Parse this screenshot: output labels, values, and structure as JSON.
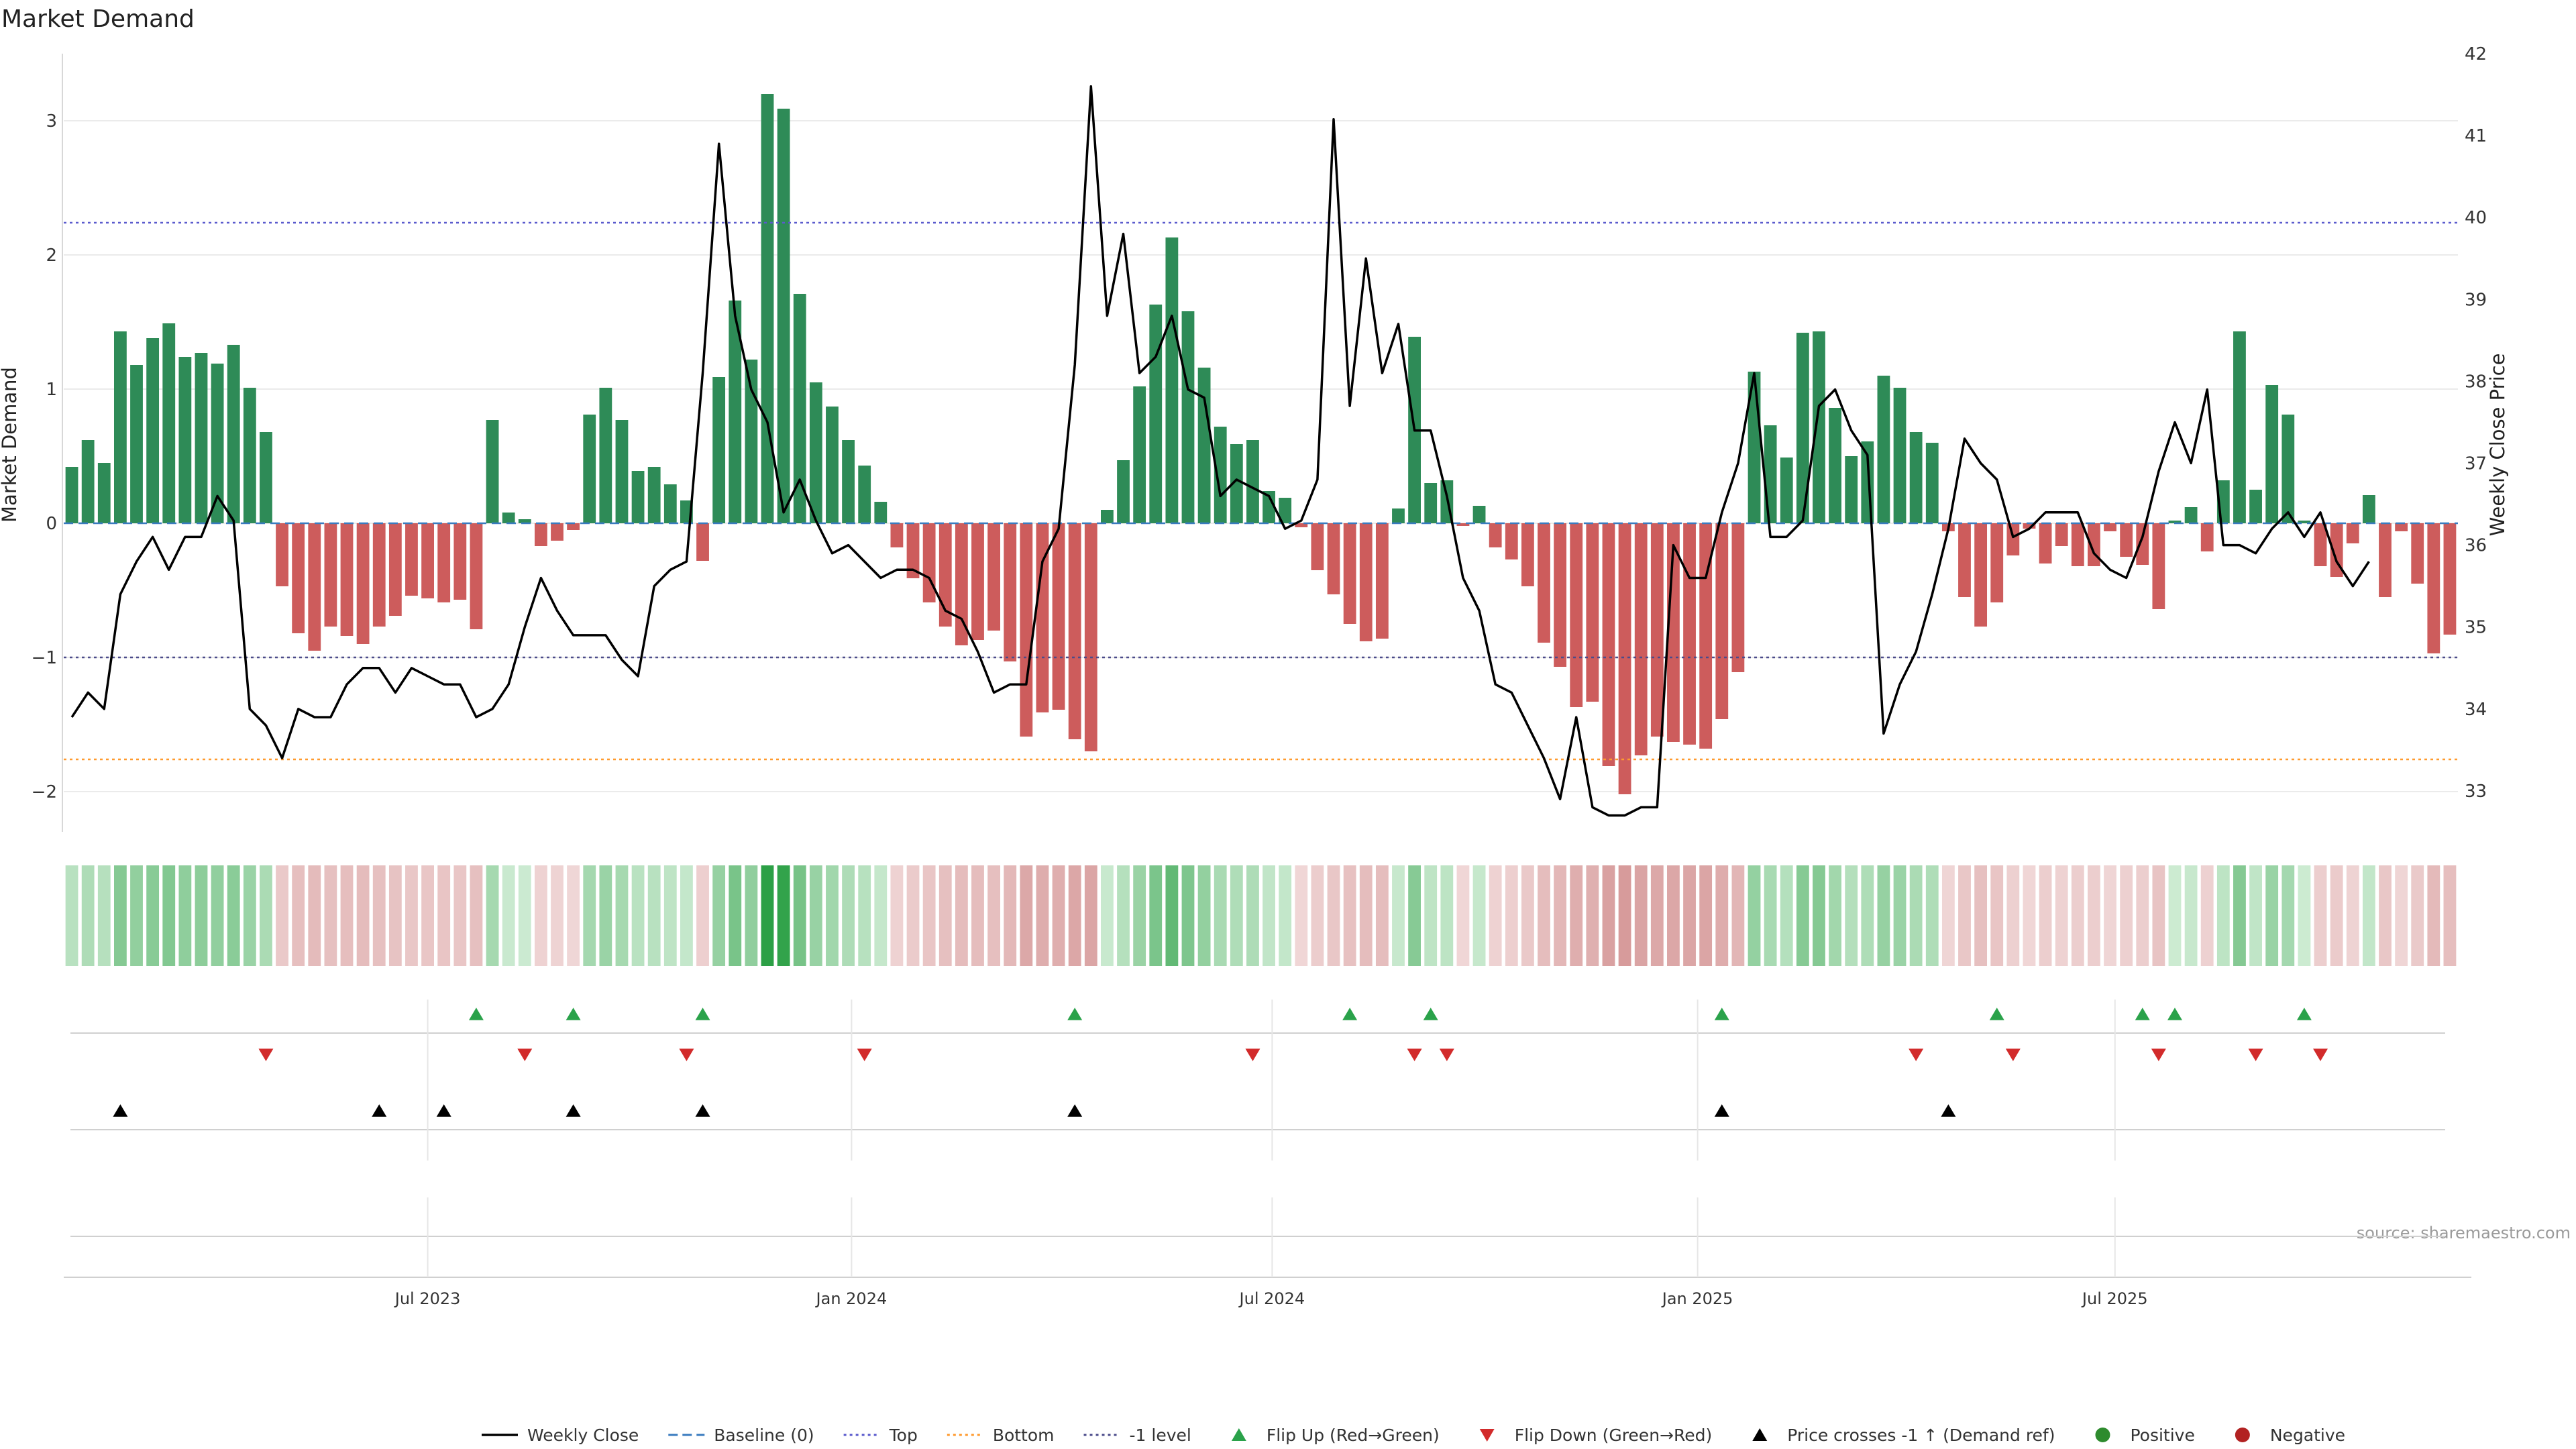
{
  "chart_data": {
    "type": "bar",
    "title": "Market Demand",
    "ylabel_left": "Market Demand",
    "ylabel_right": "Weekly Close Price",
    "source": "source: sharemaestro.com",
    "left_axis": {
      "ylim": [
        -2.3,
        3.5
      ],
      "ticks": [
        -2,
        -1,
        0,
        1,
        2,
        3
      ]
    },
    "right_axis": {
      "ylim": [
        32.5,
        42.0
      ],
      "ticks": [
        33,
        34,
        35,
        36,
        37,
        38,
        39,
        40,
        41,
        42
      ]
    },
    "x_axis": {
      "start_date": "2023-01-02",
      "interval": "weekly",
      "tick_labels": [
        {
          "label": "Jul 2023",
          "week": 22
        },
        {
          "label": "Jan 2024",
          "week": 48.2
        },
        {
          "label": "Jul 2024",
          "week": 74.2
        },
        {
          "label": "Jan 2025",
          "week": 100.5
        },
        {
          "label": "Jul 2025",
          "week": 126.3
        }
      ]
    },
    "reference_lines": [
      {
        "name": "Top",
        "value": 2.24,
        "color": "#5a5acd"
      },
      {
        "name": "Bottom",
        "value": -1.76,
        "color": "#ff9a2e"
      },
      {
        "name": "-1 level",
        "value": -1.0,
        "color": "#4b4b8a"
      }
    ],
    "series": [
      {
        "name": "Market Demand",
        "values": [
          0.42,
          0.62,
          0.45,
          1.43,
          1.18,
          1.38,
          1.49,
          1.24,
          1.27,
          1.19,
          1.33,
          1.01,
          0.68,
          -0.47,
          -0.82,
          -0.95,
          -0.77,
          -0.84,
          -0.9,
          -0.77,
          -0.69,
          -0.54,
          -0.56,
          -0.59,
          -0.57,
          -0.79,
          0.77,
          0.08,
          0.03,
          -0.17,
          -0.13,
          -0.05,
          0.81,
          1.01,
          0.77,
          0.39,
          0.42,
          0.29,
          0.17,
          -0.28,
          1.09,
          1.66,
          1.22,
          3.2,
          3.09,
          1.71,
          1.05,
          0.87,
          0.62,
          0.43,
          0.16,
          -0.18,
          -0.41,
          -0.59,
          -0.77,
          -0.91,
          -0.87,
          -0.8,
          -1.03,
          -1.59,
          -1.41,
          -1.39,
          -1.61,
          -1.7,
          0.1,
          0.47,
          1.02,
          1.63,
          2.13,
          1.58,
          1.16,
          0.72,
          0.59,
          0.62,
          0.24,
          0.19,
          -0.03,
          -0.35,
          -0.53,
          -0.75,
          -0.88,
          -0.86,
          0.11,
          1.39,
          0.3,
          0.32,
          -0.02,
          0.13,
          -0.18,
          -0.27,
          -0.47,
          -0.89,
          -1.07,
          -1.37,
          -1.33,
          -1.81,
          -2.02,
          -1.73,
          -1.59,
          -1.63,
          -1.65,
          -1.68,
          -1.46,
          -1.11,
          1.13,
          0.73,
          0.49,
          1.42,
          1.43,
          0.86,
          0.5,
          0.61,
          1.1,
          1.01,
          0.68,
          0.6,
          -0.06,
          -0.55,
          -0.77,
          -0.59,
          -0.24,
          -0.04,
          -0.3,
          -0.17,
          -0.32,
          -0.32,
          -0.06,
          -0.25,
          -0.31,
          -0.64,
          0.02,
          0.12,
          -0.21,
          0.32,
          1.43,
          0.25,
          1.03,
          0.81,
          0.02,
          -0.32,
          -0.4,
          -0.15,
          0.21,
          -0.55,
          -0.06,
          -0.45,
          -0.97,
          -0.83
        ]
      },
      {
        "name": "Weekly Close",
        "values": [
          33.9,
          34.2,
          34,
          35.4,
          35.8,
          36.1,
          35.7,
          36.1,
          36.1,
          36.6,
          36.3,
          34.0,
          33.8,
          33.4,
          34.0,
          33.9,
          33.9,
          34.3,
          34.5,
          34.5,
          34.2,
          34.5,
          34.4,
          34.3,
          34.3,
          33.9,
          34.0,
          34.3,
          35.0,
          35.6,
          35.2,
          34.9,
          34.9,
          34.9,
          34.6,
          34.4,
          35.5,
          35.7,
          35.8,
          38.1,
          40.9,
          38.8,
          37.9,
          37.5,
          36.4,
          36.8,
          36.3,
          35.9,
          36.0,
          35.8,
          35.6,
          35.7,
          35.7,
          35.6,
          35.2,
          35.1,
          34.7,
          34.2,
          34.3,
          34.3,
          35.8,
          36.2,
          38.2,
          41.6,
          38.8,
          39.8,
          38.1,
          38.3,
          38.8,
          37.9,
          37.8,
          36.6,
          36.8,
          36.7,
          36.6,
          36.2,
          36.3,
          36.8,
          41.2,
          37.7,
          39.5,
          38.1,
          38.7,
          37.4,
          37.4,
          36.6,
          35.6,
          35.2,
          34.3,
          34.2,
          33.8,
          33.4,
          32.9,
          33.9,
          32.8,
          32.7,
          32.7,
          32.8,
          32.8,
          36.0,
          35.6,
          35.6,
          36.4,
          37.0,
          38.1,
          36.1,
          36.1,
          36.3,
          37.7,
          37.9,
          37.4,
          37.1,
          33.7,
          34.3,
          34.7,
          35.4,
          36.2,
          37.3,
          37.0,
          36.8,
          36.1,
          36.2,
          36.4,
          36.4,
          36.4,
          35.9,
          35.7,
          35.6,
          36.1,
          36.9,
          37.5,
          37.0,
          37.9,
          36.0,
          36.0,
          35.9,
          36.2,
          36.4,
          36.1,
          36.4,
          35.8,
          35.5,
          35.8
        ]
      }
    ],
    "signals": {
      "flip_up_weeks": [
        25,
        31,
        39,
        62,
        79,
        84,
        102,
        119,
        128,
        130,
        138
      ],
      "flip_down_weeks": [
        12,
        28,
        38,
        49,
        73,
        83,
        85,
        114,
        120,
        129,
        135,
        139
      ],
      "price_cross_weeks": [
        3,
        19,
        23,
        31,
        39,
        62,
        102,
        116
      ]
    },
    "legend": {
      "position": "bottom-center",
      "entries": [
        {
          "label": "Weekly Close",
          "kind": "line",
          "color": "#000000"
        },
        {
          "label": "Baseline (0)",
          "kind": "dash",
          "color": "#3a7bbf"
        },
        {
          "label": "Top",
          "kind": "dot",
          "color": "#5a5acd"
        },
        {
          "label": "Bottom",
          "kind": "dot",
          "color": "#ff9a2e"
        },
        {
          "label": "-1 level",
          "kind": "dot",
          "color": "#4b4b8a"
        },
        {
          "label": "Flip Up (Red→Green)",
          "kind": "tri-up",
          "color": "#2aa24a"
        },
        {
          "label": "Flip Down (Green→Red)",
          "kind": "tri-down",
          "color": "#d22b2b"
        },
        {
          "label": "Price crosses -1 ↑ (Demand ref)",
          "kind": "tri-up",
          "color": "#000000"
        },
        {
          "label": "Positive",
          "kind": "circle",
          "color": "#2e8b2e"
        },
        {
          "label": "Negative",
          "kind": "circle",
          "color": "#b22222"
        }
      ]
    },
    "colors": {
      "positive_bar": "#2e8b57",
      "negative_bar": "#cd5c5c",
      "price_line": "#000000",
      "grid": "#ebebeb"
    }
  }
}
